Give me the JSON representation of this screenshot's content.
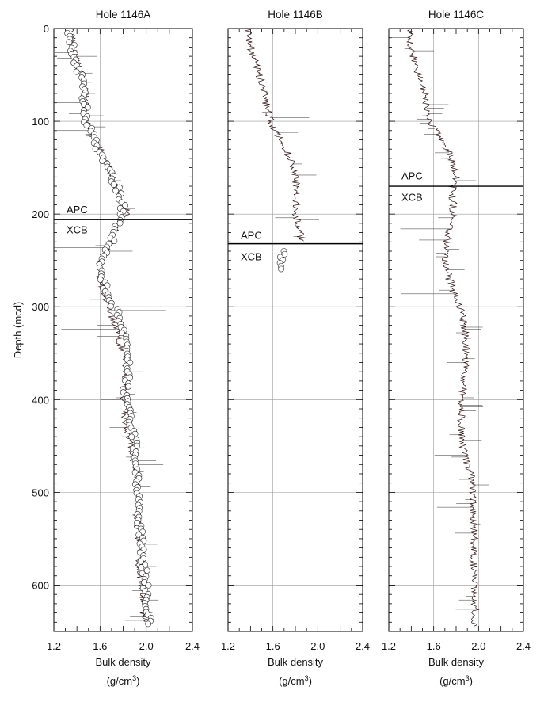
{
  "chart_data": {
    "type": "line",
    "ylabel": "Depth (mcd)",
    "ylim": [
      0,
      650
    ],
    "y_ticks": [
      "0",
      "100",
      "200",
      "300",
      "400",
      "500",
      "600"
    ],
    "y_inverted": true,
    "grid": true,
    "panels": [
      {
        "title": "Hole 1146A",
        "xlabel": "Bulk density",
        "xunit_base": "(g/cm",
        "xunit_exp": "3",
        "xunit_close": ")",
        "xlim": [
          1.2,
          2.4
        ],
        "x_ticks": [
          "1.2",
          "1.6",
          "2.0",
          "2.4"
        ],
        "annotations": [
          {
            "text": "APC",
            "depth": 195
          },
          {
            "text": "XCB",
            "depth": 217
          }
        ],
        "boundary_depth": 206,
        "series": [
          {
            "name": "",
            "style": "line",
            "points": [
              [
                1.34,
                0
              ],
              [
                1.36,
                20
              ],
              [
                1.41,
                40
              ],
              [
                1.46,
                60
              ],
              [
                1.47,
                80
              ],
              [
                1.48,
                100
              ],
              [
                1.53,
                115
              ],
              [
                1.6,
                130
              ],
              [
                1.68,
                150
              ],
              [
                1.74,
                170
              ],
              [
                1.79,
                190
              ],
              [
                1.84,
                198
              ],
              [
                1.74,
                212
              ],
              [
                1.7,
                230
              ],
              [
                1.6,
                250
              ],
              [
                1.58,
                265
              ],
              [
                1.63,
                280
              ],
              [
                1.68,
                300
              ],
              [
                1.73,
                320
              ],
              [
                1.78,
                340
              ],
              [
                1.83,
                360
              ],
              [
                1.82,
                380
              ],
              [
                1.8,
                400
              ],
              [
                1.81,
                420
              ],
              [
                1.85,
                440
              ],
              [
                1.88,
                460
              ],
              [
                1.92,
                480
              ],
              [
                1.91,
                500
              ],
              [
                1.92,
                520
              ],
              [
                1.93,
                540
              ],
              [
                1.95,
                560
              ],
              [
                1.94,
                580
              ],
              [
                1.96,
                600
              ],
              [
                1.98,
                620
              ],
              [
                1.98,
                640
              ]
            ]
          },
          {
            "name": "",
            "style": "points",
            "points": [
              [
                1.32,
                5
              ],
              [
                1.36,
                20
              ],
              [
                1.4,
                40
              ],
              [
                1.45,
                60
              ],
              [
                1.47,
                80
              ],
              [
                1.48,
                100
              ],
              [
                1.55,
                120
              ],
              [
                1.62,
                140
              ],
              [
                1.7,
                160
              ],
              [
                1.76,
                175
              ],
              [
                1.8,
                190
              ],
              [
                1.75,
                210
              ],
              [
                1.7,
                230
              ],
              [
                1.6,
                250
              ],
              [
                1.62,
                270
              ],
              [
                1.68,
                290
              ],
              [
                1.76,
                310
              ],
              [
                1.8,
                330
              ],
              [
                1.85,
                350
              ],
              [
                1.84,
                370
              ],
              [
                1.82,
                390
              ],
              [
                1.84,
                410
              ],
              [
                1.88,
                430
              ],
              [
                1.9,
                450
              ],
              [
                1.91,
                470
              ],
              [
                1.92,
                490
              ],
              [
                1.93,
                510
              ],
              [
                1.94,
                530
              ],
              [
                1.96,
                550
              ],
              [
                1.97,
                570
              ],
              [
                1.99,
                590
              ],
              [
                2.0,
                610
              ],
              [
                2.02,
                630
              ],
              [
                2.02,
                645
              ]
            ]
          }
        ]
      },
      {
        "title": "Hole 1146B",
        "xlabel": "Bulk density",
        "xunit_base": "(g/cm",
        "xunit_exp": "3",
        "xunit_close": ")",
        "xlim": [
          1.2,
          2.4
        ],
        "x_ticks": [
          "1.2",
          "1.6",
          "2.0",
          "2.4"
        ],
        "annotations": [
          {
            "text": "APC",
            "depth": 223
          },
          {
            "text": "XCB",
            "depth": 246
          }
        ],
        "boundary_depth": 232,
        "series": [
          {
            "name": "",
            "style": "line",
            "points": [
              [
                1.38,
                0
              ],
              [
                1.4,
                20
              ],
              [
                1.45,
                40
              ],
              [
                1.5,
                60
              ],
              [
                1.54,
                80
              ],
              [
                1.58,
                100
              ],
              [
                1.66,
                120
              ],
              [
                1.76,
                140
              ],
              [
                1.8,
                160
              ],
              [
                1.82,
                180
              ],
              [
                1.8,
                200
              ],
              [
                1.84,
                220
              ],
              [
                1.86,
                230
              ]
            ]
          },
          {
            "name": "",
            "style": "points",
            "points": [
              [
                1.7,
                240
              ],
              [
                1.68,
                250
              ],
              [
                1.66,
                260
              ]
            ]
          }
        ]
      },
      {
        "title": "Hole 1146C",
        "xlabel": "Bulk density",
        "xunit_base": "(g/cm",
        "xunit_exp": "3",
        "xunit_close": ")",
        "xlim": [
          1.2,
          2.4
        ],
        "x_ticks": [
          "1.2",
          "1.6",
          "2.0",
          "2.4"
        ],
        "annotations": [
          {
            "text": "APC",
            "depth": 159
          },
          {
            "text": "XCB",
            "depth": 182
          }
        ],
        "boundary_depth": 170,
        "series": [
          {
            "name": "",
            "style": "line",
            "points": [
              [
                1.38,
                0
              ],
              [
                1.4,
                20
              ],
              [
                1.44,
                40
              ],
              [
                1.5,
                60
              ],
              [
                1.53,
                80
              ],
              [
                1.56,
                100
              ],
              [
                1.68,
                120
              ],
              [
                1.76,
                140
              ],
              [
                1.8,
                160
              ],
              [
                1.76,
                175
              ],
              [
                1.78,
                190
              ],
              [
                1.76,
                210
              ],
              [
                1.72,
                230
              ],
              [
                1.7,
                250
              ],
              [
                1.74,
                270
              ],
              [
                1.8,
                290
              ],
              [
                1.86,
                310
              ],
              [
                1.88,
                330
              ],
              [
                1.89,
                350
              ],
              [
                1.88,
                370
              ],
              [
                1.86,
                390
              ],
              [
                1.85,
                410
              ],
              [
                1.84,
                430
              ],
              [
                1.86,
                450
              ],
              [
                1.9,
                470
              ],
              [
                1.95,
                490
              ],
              [
                1.95,
                510
              ],
              [
                1.96,
                530
              ],
              [
                1.96,
                550
              ],
              [
                1.95,
                570
              ],
              [
                1.96,
                590
              ],
              [
                1.97,
                610
              ],
              [
                1.97,
                630
              ],
              [
                1.97,
                645
              ]
            ]
          }
        ]
      }
    ]
  }
}
